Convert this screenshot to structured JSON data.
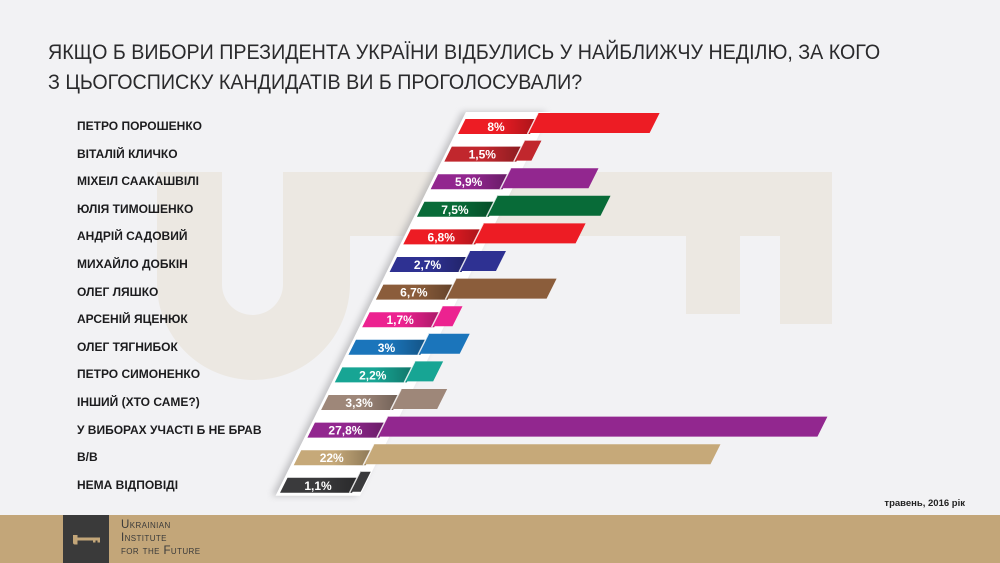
{
  "title": {
    "line1": "ЯКЩО Б ВИБОРИ ПРЕЗИДЕНТА УКРАЇНИ ВІДБУЛИСЬ У НАЙБЛИЖЧУ НЕДІЛЮ, ЗА КОГО",
    "line2": "З ЦЬОГОСПИСКУ КАНДИДАТІВ ВИ Б ПРОГОЛОСУВАЛИ?"
  },
  "date": "травень, 2016 рік",
  "footer": {
    "org_line1": "Ukrainian",
    "org_line2": "Institute",
    "org_line3": "for the Future",
    "logo_icon": "key-icon"
  },
  "colors": {
    "background": "#f2f2f4",
    "watermark": "#ece8e2",
    "footer": "#c3a679",
    "logo_box": "#3a3a3a"
  },
  "chart_data": {
    "type": "bar",
    "orientation": "horizontal",
    "title": "ЯКЩО Б ВИБОРИ ПРЕЗИДЕНТА УКРАЇНИ ВІДБУЛИСЬ У НАЙБЛИЖЧУ НЕДІЛЮ, ЗА КОГО З ЦЬОГОСПИСКУ КАНДИДАТІВ ВИ Б ПРОГОЛОСУВАЛИ?",
    "subtitle": "травень, 2016 рік",
    "xlabel": "",
    "ylabel": "",
    "unit": "%",
    "grid": false,
    "legend": null,
    "categories": [
      "ПЕТРО ПОРОШЕНКО",
      "ВІТАЛІЙ КЛИЧКО",
      "МІХЕІЛ СААКАШВІЛІ",
      "ЮЛІЯ ТИМОШЕНКО",
      "АНДРІЙ САДОВИЙ",
      "МИХАЙЛО ДОБКІН",
      "ОЛЕГ ЛЯШКО",
      "АРСЕНІЙ ЯЦЕНЮК",
      "ОЛЕГ ТЯГНИБОК",
      "ПЕТРО СИМОНЕНКО",
      "ІНШИЙ (ХТО САМЕ?)",
      "У ВИБОРАХ УЧАСТІ Б НЕ БРАВ",
      "В/В",
      "НЕМА ВІДПОВІДІ"
    ],
    "values": [
      8,
      1.5,
      5.9,
      7.5,
      6.8,
      2.7,
      6.7,
      1.7,
      3,
      2.2,
      3.3,
      27.8,
      22,
      1.1
    ],
    "value_labels": [
      "8%",
      "1,5%",
      "5,9%",
      "7,5%",
      "6,8%",
      "2,7%",
      "6,7%",
      "1,7%",
      "3%",
      "2,2%",
      "3,3%",
      "27,8%",
      "22%",
      "1,1%"
    ],
    "colors": [
      "#ed1c24",
      "#c1272d",
      "#92278f",
      "#086b38",
      "#ed1c24",
      "#2e3192",
      "#8b5d3b",
      "#ec2290",
      "#1b75bb",
      "#17a594",
      "#9e8779",
      "#92278f",
      "#c6a979",
      "#3a3a3c"
    ]
  }
}
